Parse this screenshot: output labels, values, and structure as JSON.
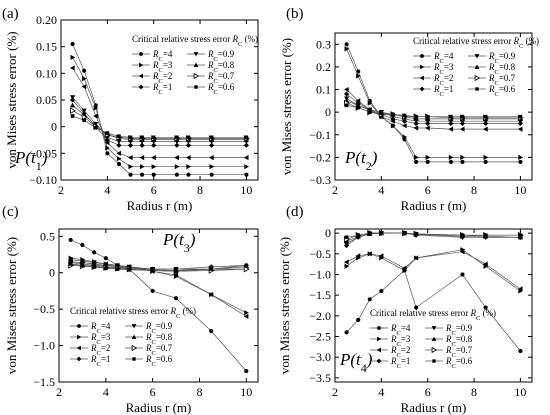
{
  "legend": {
    "title_prefix": "Critical relative stress error ",
    "title_symbol": "R",
    "title_sub": "C",
    "title_suffix": " (%)",
    "entries": [
      {
        "label": "=4",
        "marker": "circle"
      },
      {
        "label": "=3",
        "marker": "tri-right"
      },
      {
        "label": "=2",
        "marker": "tri-left"
      },
      {
        "label": "=1",
        "marker": "diamond"
      },
      {
        "label": "=0.9",
        "marker": "tri-down"
      },
      {
        "label": "=0.8",
        "marker": "tri-up"
      },
      {
        "label": "=0.7",
        "marker": "tri-right-open"
      },
      {
        "label": "=0.6",
        "marker": "square"
      }
    ]
  },
  "chart_data": [
    {
      "type": "line",
      "panel_label": "(a)",
      "in_plot_label": "P(t1)",
      "xlabel": "Radius  r (m)",
      "ylabel": "von Mises stress error (%)",
      "xlim": [
        2,
        10.5
      ],
      "ylim": [
        -0.1,
        0.2
      ],
      "xticks": [
        2,
        4,
        6,
        8,
        10
      ],
      "yticks": [
        -0.1,
        -0.05,
        0,
        0.05,
        0.1,
        0.15,
        0.2
      ],
      "ytick_labels": [
        "−0.10",
        "−0.05",
        "0",
        "0.05",
        "0.10",
        "0.15",
        "0.20"
      ],
      "x": [
        2.5,
        3,
        3.5,
        4,
        4.5,
        5,
        5.5,
        6,
        7,
        7.5,
        8.5,
        10
      ],
      "series": [
        {
          "name": "=4",
          "values": [
            0.155,
            0.105,
            0.04,
            -0.05,
            -0.07,
            -0.09,
            -0.09,
            -0.09,
            -0.09,
            -0.09,
            -0.09,
            -0.09
          ]
        },
        {
          "name": "=3",
          "values": [
            0.13,
            0.09,
            0.035,
            -0.04,
            -0.06,
            -0.075,
            -0.075,
            -0.075,
            -0.075,
            -0.075,
            -0.075,
            -0.075
          ]
        },
        {
          "name": "=2",
          "values": [
            0.11,
            0.075,
            0.02,
            -0.03,
            -0.05,
            -0.058,
            -0.058,
            -0.058,
            -0.058,
            -0.058,
            -0.058,
            -0.058
          ]
        },
        {
          "name": "=1",
          "values": [
            0.05,
            0.025,
            0.0,
            -0.025,
            -0.035,
            -0.035,
            -0.035,
            -0.035,
            -0.035,
            -0.035,
            -0.035,
            -0.035
          ]
        },
        {
          "name": "=0.9",
          "values": [
            0.055,
            0.03,
            0.005,
            -0.02,
            -0.028,
            -0.028,
            -0.028,
            -0.028,
            -0.028,
            -0.028,
            -0.028,
            -0.028
          ]
        },
        {
          "name": "=0.8",
          "values": [
            0.04,
            0.022,
            0.003,
            -0.015,
            -0.022,
            -0.024,
            -0.024,
            -0.024,
            -0.024,
            -0.024,
            -0.024,
            -0.024
          ]
        },
        {
          "name": "=0.7",
          "values": [
            0.03,
            0.018,
            0.0,
            -0.015,
            -0.02,
            -0.022,
            -0.022,
            -0.022,
            -0.022,
            -0.022,
            -0.022,
            -0.022
          ]
        },
        {
          "name": "=0.6",
          "values": [
            0.02,
            0.012,
            -0.002,
            -0.012,
            -0.018,
            -0.02,
            -0.02,
            -0.02,
            -0.02,
            -0.02,
            -0.02,
            -0.02
          ]
        }
      ]
    },
    {
      "type": "line",
      "panel_label": "(b)",
      "in_plot_label": "P(t2)",
      "xlabel": "Radius  r (m)",
      "ylabel": "von Mises stress error (%)",
      "xlim": [
        2,
        10.5
      ],
      "ylim": [
        -0.3,
        0.35
      ],
      "xticks": [
        2,
        4,
        6,
        8,
        10
      ],
      "yticks": [
        -0.3,
        -0.2,
        -0.1,
        0,
        0.1,
        0.2,
        0.3
      ],
      "ytick_labels": [
        "−0.3",
        "−0.2",
        "−0.1",
        "0",
        "0.1",
        "0.2",
        "0.3"
      ],
      "x": [
        2.5,
        3,
        3.5,
        4,
        4.5,
        5,
        5.5,
        6,
        7,
        7.5,
        8.5,
        10
      ],
      "series": [
        {
          "name": "=4",
          "values": [
            0.3,
            0.18,
            0.05,
            -0.02,
            -0.06,
            -0.12,
            -0.22,
            -0.22,
            -0.22,
            -0.22,
            -0.22,
            -0.22
          ]
        },
        {
          "name": "=3",
          "values": [
            0.28,
            0.16,
            0.04,
            -0.02,
            -0.06,
            -0.11,
            -0.2,
            -0.2,
            -0.2,
            -0.2,
            -0.2,
            -0.2
          ]
        },
        {
          "name": "=2",
          "values": [
            0.1,
            0.05,
            0.01,
            -0.02,
            -0.04,
            -0.06,
            -0.07,
            -0.07,
            -0.075,
            -0.075,
            -0.075,
            -0.075
          ]
        },
        {
          "name": "=1",
          "values": [
            0.08,
            0.04,
            0.01,
            -0.01,
            -0.03,
            -0.04,
            -0.05,
            -0.05,
            -0.05,
            -0.05,
            -0.05,
            -0.05
          ]
        },
        {
          "name": "=0.9",
          "values": [
            0.06,
            0.03,
            0.01,
            0.0,
            -0.02,
            -0.03,
            -0.04,
            -0.04,
            -0.04,
            -0.04,
            -0.04,
            -0.04
          ]
        },
        {
          "name": "=0.8",
          "values": [
            0.05,
            0.03,
            0.01,
            0.0,
            -0.01,
            -0.02,
            -0.03,
            -0.03,
            -0.03,
            -0.03,
            -0.03,
            -0.03
          ]
        },
        {
          "name": "=0.7",
          "values": [
            0.04,
            0.02,
            0.0,
            -0.01,
            -0.01,
            -0.02,
            -0.02,
            -0.02,
            -0.025,
            -0.025,
            -0.025,
            -0.025
          ]
        },
        {
          "name": "=0.6",
          "values": [
            0.03,
            0.02,
            0.0,
            -0.005,
            -0.01,
            -0.015,
            -0.02,
            -0.02,
            -0.02,
            -0.02,
            -0.02,
            -0.02
          ]
        }
      ]
    },
    {
      "type": "line",
      "panel_label": "(c)",
      "in_plot_label": "P(t3)",
      "xlabel": "Radius  r (m)",
      "ylabel": "von Mises stress error (%)",
      "xlim": [
        2,
        10.5
      ],
      "ylim": [
        -1.5,
        0.6
      ],
      "xticks": [
        2,
        4,
        6,
        8,
        10
      ],
      "yticks": [
        -1.5,
        -1.0,
        -0.5,
        0,
        0.5
      ],
      "ytick_labels": [
        "−1.5",
        "−1.0",
        "−0.5",
        "0",
        "0.5"
      ],
      "x": [
        2.5,
        3,
        3.5,
        4,
        4.5,
        5,
        6,
        7,
        8.5,
        10
      ],
      "series": [
        {
          "name": "=4",
          "values": [
            0.45,
            0.38,
            0.28,
            0.2,
            0.1,
            0.05,
            -0.25,
            -0.35,
            -0.8,
            -1.35
          ]
        },
        {
          "name": "=3",
          "values": [
            0.2,
            0.18,
            0.15,
            0.12,
            0.1,
            0.08,
            0.02,
            -0.05,
            -0.3,
            -0.55
          ]
        },
        {
          "name": "=2",
          "values": [
            0.18,
            0.16,
            0.14,
            0.12,
            0.1,
            0.08,
            0.02,
            -0.03,
            -0.3,
            -0.6
          ]
        },
        {
          "name": "=1",
          "values": [
            0.15,
            0.14,
            0.12,
            0.1,
            0.1,
            0.08,
            0.05,
            0.05,
            0.08,
            0.1
          ]
        },
        {
          "name": "=0.9",
          "values": [
            0.14,
            0.12,
            0.1,
            0.1,
            0.08,
            0.07,
            0.05,
            0.05,
            0.05,
            0.05
          ]
        },
        {
          "name": "=0.8",
          "values": [
            0.12,
            0.1,
            0.09,
            0.08,
            0.07,
            0.06,
            0.04,
            0.03,
            0.05,
            0.08
          ]
        },
        {
          "name": "=0.7",
          "values": [
            0.1,
            0.09,
            0.08,
            0.07,
            0.06,
            0.05,
            0.03,
            0.02,
            0.03,
            0.05
          ]
        },
        {
          "name": "=0.6",
          "values": [
            0.12,
            0.1,
            0.08,
            0.06,
            0.05,
            0.04,
            0.03,
            0.02,
            0.05,
            0.1
          ]
        }
      ]
    },
    {
      "type": "line",
      "panel_label": "(d)",
      "in_plot_label": "P(t4)",
      "xlabel": "Radius  r (m)",
      "ylabel": "von Mises stress error (%)",
      "xlim": [
        2,
        10.5
      ],
      "ylim": [
        -3.6,
        0.1
      ],
      "xticks": [
        2,
        4,
        6,
        8,
        10
      ],
      "yticks": [
        -3.5,
        -3.0,
        -2.5,
        -2.0,
        -1.5,
        -1.0,
        -0.5,
        0
      ],
      "ytick_labels": [
        "−3.5",
        "−3.0",
        "−2.5",
        "−2.0",
        "−1.5",
        "−1.0",
        "−0.5",
        "0"
      ],
      "x": [
        2.5,
        3,
        3.5,
        4,
        5,
        5.5,
        7.5,
        8.5,
        10
      ],
      "series": [
        {
          "name": "=4",
          "values": [
            -2.4,
            -2.1,
            -1.6,
            -1.4,
            -0.9,
            -1.8,
            -1.0,
            -1.8,
            -2.85
          ]
        },
        {
          "name": "=3",
          "values": [
            -0.8,
            -0.6,
            -0.5,
            -0.6,
            -0.9,
            -0.6,
            -0.4,
            -0.8,
            -1.4
          ]
        },
        {
          "name": "=2",
          "values": [
            -0.7,
            -0.55,
            -0.5,
            -0.55,
            -0.85,
            -0.6,
            -0.45,
            -0.75,
            -1.35
          ]
        },
        {
          "name": "=1",
          "values": [
            -0.3,
            -0.1,
            0.0,
            0.0,
            0.0,
            -0.05,
            -0.1,
            -0.1,
            -0.1
          ]
        },
        {
          "name": "=0.9",
          "values": [
            -0.25,
            -0.1,
            -0.02,
            0.0,
            0.0,
            -0.03,
            -0.08,
            -0.1,
            -0.1
          ]
        },
        {
          "name": "=0.8",
          "values": [
            -0.2,
            -0.08,
            -0.02,
            0.0,
            0.0,
            -0.02,
            -0.05,
            -0.08,
            -0.1
          ]
        },
        {
          "name": "=0.7",
          "values": [
            -0.15,
            -0.05,
            0.0,
            0.0,
            0.0,
            -0.02,
            -0.05,
            -0.05,
            -0.05
          ]
        },
        {
          "name": "=0.6",
          "values": [
            -0.1,
            -0.05,
            0.0,
            0.0,
            0.0,
            -0.02,
            -0.05,
            -0.05,
            -0.05
          ]
        }
      ]
    }
  ]
}
